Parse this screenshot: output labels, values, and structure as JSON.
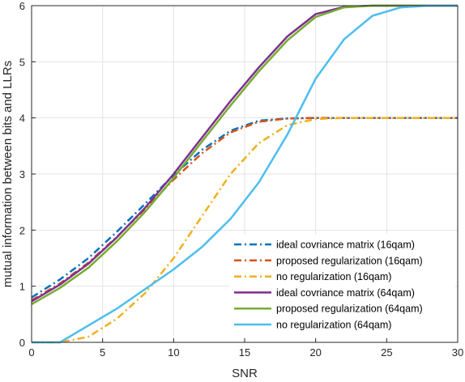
{
  "chart_data": {
    "type": "line",
    "title": "",
    "xlabel": "SNR",
    "ylabel": "mutual information between bits and LLRs",
    "xlim": [
      0,
      30
    ],
    "ylim": [
      0,
      6
    ],
    "xticks": [
      "0",
      "5",
      "10",
      "15",
      "20",
      "25",
      "30"
    ],
    "yticks": [
      "0",
      "1",
      "2",
      "3",
      "4",
      "5",
      "6"
    ],
    "grid": true,
    "legend_position": "bottom-right",
    "x": [
      0,
      2,
      4,
      6,
      8,
      10,
      12,
      14,
      16,
      18,
      20,
      22,
      24,
      26,
      28,
      30
    ],
    "series": [
      {
        "name": "ideal covriance matrix (16qam)",
        "color": "#0072BD",
        "style": "dashdot",
        "values": [
          0.8,
          1.12,
          1.5,
          1.97,
          2.47,
          2.98,
          3.43,
          3.77,
          3.95,
          3.99,
          4.0,
          4.0,
          4.0,
          4.0,
          4.0,
          4.0
        ]
      },
      {
        "name": "proposed regularization (16qam)",
        "color": "#D95319",
        "style": "dashdot",
        "values": [
          0.75,
          1.05,
          1.42,
          1.88,
          2.38,
          2.9,
          3.37,
          3.74,
          3.93,
          3.99,
          4.0,
          4.0,
          4.0,
          4.0,
          4.0,
          4.0
        ]
      },
      {
        "name": "no regularization (16qam)",
        "color": "#EDB120",
        "style": "dashdot",
        "values": [
          0.0,
          0.0,
          0.1,
          0.42,
          0.88,
          1.5,
          2.25,
          3.0,
          3.55,
          3.87,
          3.98,
          4.0,
          4.0,
          4.0,
          4.0,
          4.0
        ]
      },
      {
        "name": "ideal covriance matrix (64qam)",
        "color": "#7E2F8E",
        "style": "solid",
        "values": [
          0.73,
          1.03,
          1.4,
          1.87,
          2.4,
          3.0,
          3.65,
          4.3,
          4.9,
          5.45,
          5.85,
          5.98,
          6.0,
          6.0,
          6.0,
          6.0
        ]
      },
      {
        "name": "proposed regularization (64qam)",
        "color": "#77AC30",
        "style": "solid",
        "values": [
          0.68,
          0.97,
          1.33,
          1.8,
          2.33,
          2.93,
          3.58,
          4.22,
          4.83,
          5.38,
          5.8,
          5.97,
          6.0,
          6.0,
          6.0,
          6.0
        ]
      },
      {
        "name": "no regularization (64qam)",
        "color": "#4DBEEE",
        "style": "solid",
        "values": [
          0.0,
          0.0,
          0.3,
          0.6,
          0.95,
          1.3,
          1.7,
          2.2,
          2.85,
          3.7,
          4.7,
          5.4,
          5.82,
          5.97,
          6.0,
          6.0
        ]
      }
    ]
  }
}
